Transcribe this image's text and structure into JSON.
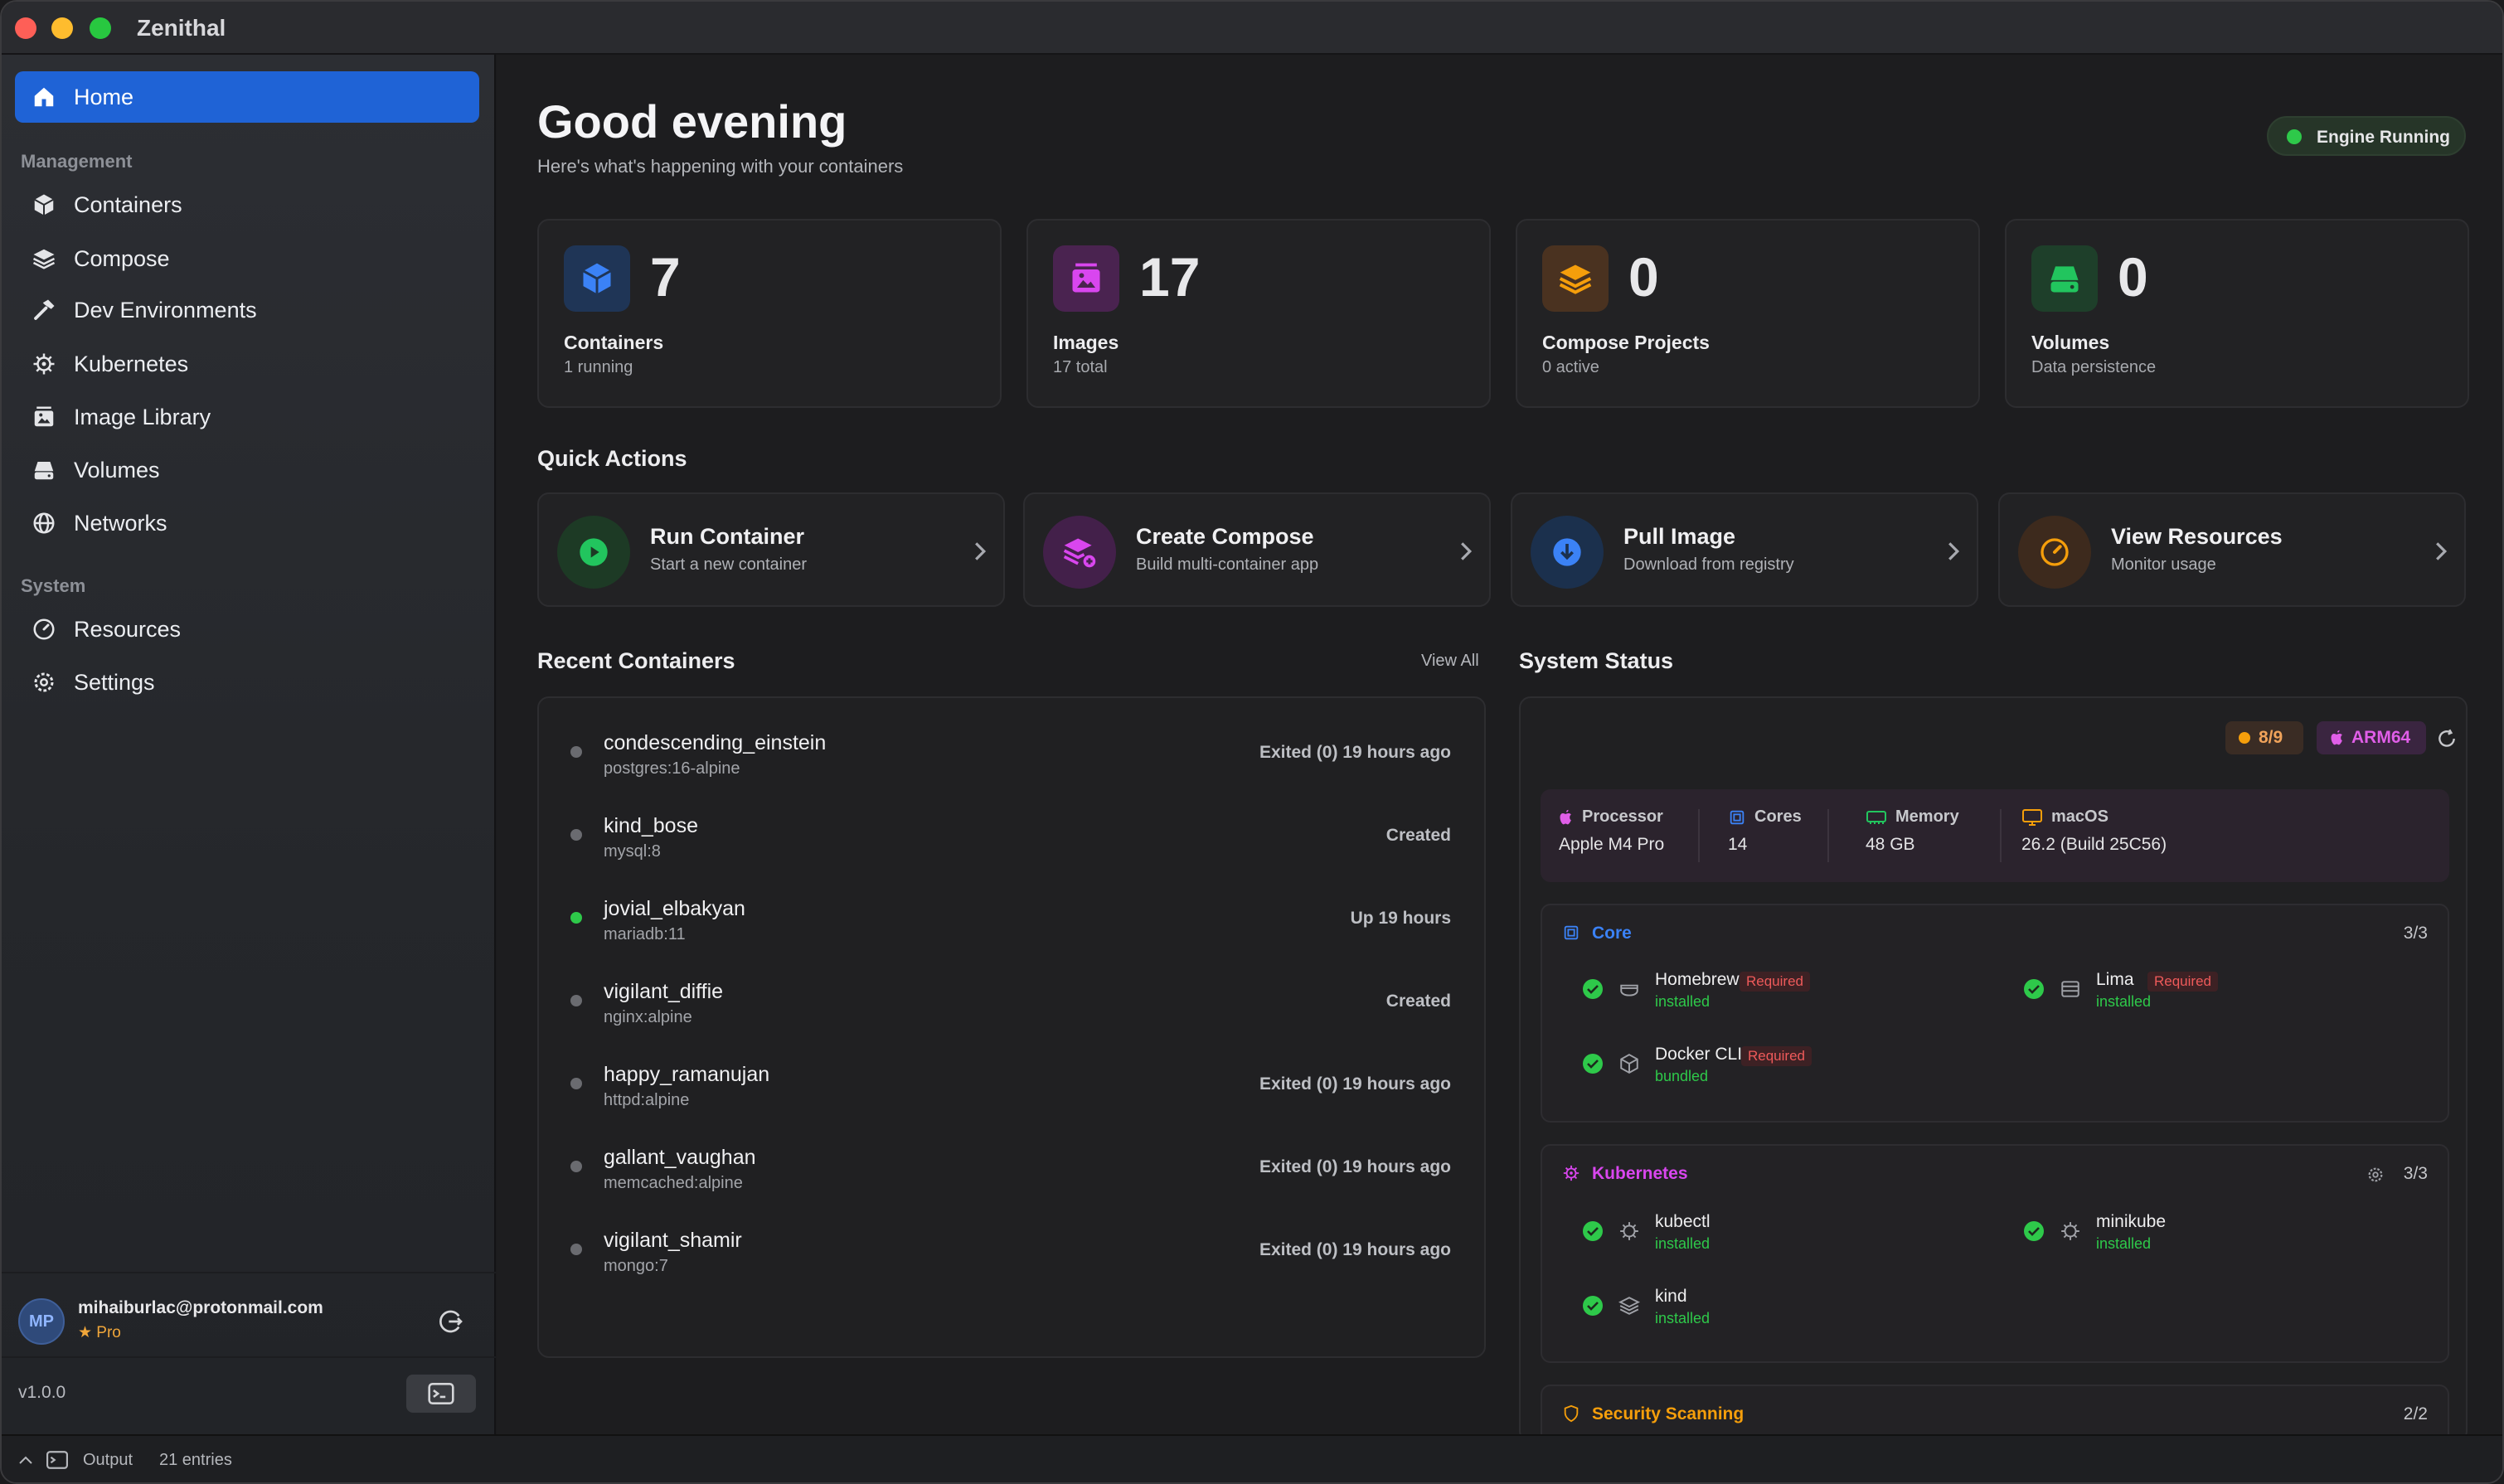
{
  "app": {
    "title": "Zenithal"
  },
  "sidebar": {
    "home": "Home",
    "management_label": "Management",
    "management": [
      "Containers",
      "Compose",
      "Dev Environments",
      "Kubernetes",
      "Image Library",
      "Volumes",
      "Networks"
    ],
    "system_label": "System",
    "system": [
      "Resources",
      "Settings"
    ],
    "user": {
      "initials": "MP",
      "email": "mihaiburlac@protonmail.com",
      "plan": "★ Pro"
    },
    "version": "v1.0.0"
  },
  "output": {
    "label": "Output",
    "count": "21 entries"
  },
  "header": {
    "greeting": "Good evening",
    "subtitle": "Here's what's happening with your containers",
    "engine_status": "Engine Running"
  },
  "stats": [
    {
      "value": "7",
      "label": "Containers",
      "sub": "1 running",
      "color": "#3b82f6"
    },
    {
      "value": "17",
      "label": "Images",
      "sub": "17 total",
      "color": "#d946ef"
    },
    {
      "value": "0",
      "label": "Compose Projects",
      "sub": "0 active",
      "color": "#f59e0b"
    },
    {
      "value": "0",
      "label": "Volumes",
      "sub": "Data persistence",
      "color": "#22c55e"
    }
  ],
  "quick_actions": {
    "title": "Quick Actions",
    "items": [
      {
        "title": "Run Container",
        "sub": "Start a new container"
      },
      {
        "title": "Create Compose",
        "sub": "Build multi-container app"
      },
      {
        "title": "Pull Image",
        "sub": "Download from registry"
      },
      {
        "title": "View Resources",
        "sub": "Monitor usage"
      }
    ]
  },
  "recent": {
    "title": "Recent Containers",
    "view_all": "View All",
    "rows": [
      {
        "name": "condescending_einstein",
        "image": "postgres:16-alpine",
        "status": "Exited (0) 19 hours ago",
        "running": false
      },
      {
        "name": "kind_bose",
        "image": "mysql:8",
        "status": "Created",
        "running": false
      },
      {
        "name": "jovial_elbakyan",
        "image": "mariadb:11",
        "status": "Up 19 hours",
        "running": true
      },
      {
        "name": "vigilant_diffie",
        "image": "nginx:alpine",
        "status": "Created",
        "running": false
      },
      {
        "name": "happy_ramanujan",
        "image": "httpd:alpine",
        "status": "Exited (0) 19 hours ago",
        "running": false
      },
      {
        "name": "gallant_vaughan",
        "image": "memcached:alpine",
        "status": "Exited (0) 19 hours ago",
        "running": false
      },
      {
        "name": "vigilant_shamir",
        "image": "mongo:7",
        "status": "Exited (0) 19 hours ago",
        "running": false
      }
    ]
  },
  "system_status": {
    "title": "System Status",
    "count_badge": "8/9",
    "arch_badge": "ARM64",
    "hardware": [
      {
        "label": "Processor",
        "value": "Apple M4 Pro"
      },
      {
        "label": "Cores",
        "value": "14"
      },
      {
        "label": "Memory",
        "value": "48 GB"
      },
      {
        "label": "macOS",
        "value": "26.2 (Build 25C56)"
      }
    ],
    "core": {
      "title": "Core",
      "count": "3/3",
      "tools": [
        {
          "name": "Homebrew",
          "status": "installed",
          "badge": "Required"
        },
        {
          "name": "Lima",
          "status": "installed",
          "badge": "Required"
        },
        {
          "name": "Docker CLI",
          "status": "bundled",
          "badge": "Required"
        }
      ]
    },
    "kubernetes": {
      "title": "Kubernetes",
      "count": "3/3",
      "tools": [
        {
          "name": "kubectl",
          "status": "installed"
        },
        {
          "name": "minikube",
          "status": "installed"
        },
        {
          "name": "kind",
          "status": "installed"
        }
      ]
    },
    "security": {
      "title": "Security Scanning",
      "count": "2/2"
    }
  }
}
